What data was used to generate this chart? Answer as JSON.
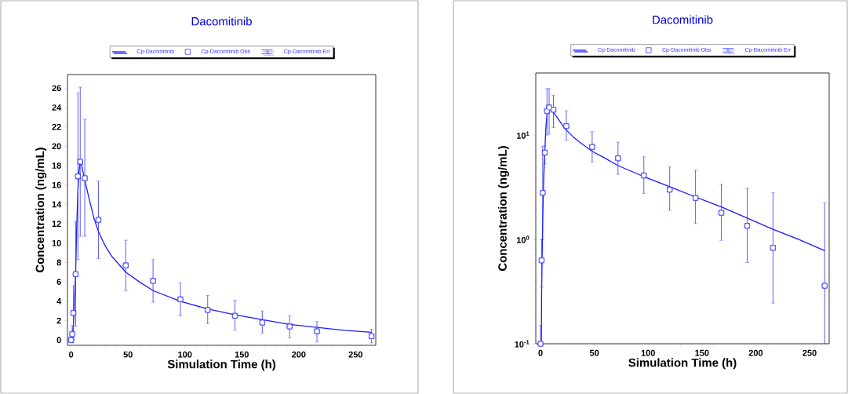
{
  "chart_data": [
    {
      "type": "line",
      "title": "Dacomitinib",
      "xlabel": "Simulation Time (h)",
      "ylabel": "Concentration (ng/mL)",
      "xlim": [
        -3.2,
        267.7
      ],
      "ylim": [
        -0.55,
        27.4
      ],
      "xticks": [
        0,
        50,
        100,
        150,
        200,
        250
      ],
      "yticks": [
        0,
        2,
        4,
        6,
        8,
        10,
        12,
        14,
        16,
        18,
        20,
        22,
        24,
        26
      ],
      "legend": "top",
      "grid": false,
      "series": [
        {
          "name": "Cp-Dacomitinib",
          "color": "#1a1aff",
          "marker": "none",
          "line_style": "solid",
          "x": [
            0,
            1,
            2,
            3,
            4,
            5,
            6,
            7,
            8,
            9,
            10,
            12,
            16,
            20,
            24,
            30,
            36,
            48,
            60,
            72,
            96,
            120,
            144,
            168,
            192,
            216,
            240,
            264
          ],
          "values": [
            0,
            0.3,
            1.5,
            4,
            7,
            12,
            15.5,
            17.5,
            18.3,
            18.2,
            17.6,
            16.5,
            14.5,
            12.6,
            11.2,
            9.7,
            8.6,
            7.0,
            6.0,
            5.1,
            4.0,
            3.2,
            2.6,
            2.1,
            1.6,
            1.3,
            1.0,
            0.8
          ]
        },
        {
          "name": "Cp-Dacomitinib Obs",
          "type": "scatter",
          "color": "#3333ff",
          "marker": "square",
          "x": [
            0,
            1,
            2,
            4,
            6,
            8,
            12,
            24,
            48,
            72,
            96,
            120,
            144,
            168,
            192,
            216,
            264
          ],
          "values": [
            0,
            0.6,
            2.8,
            6.8,
            16.9,
            18.4,
            16.7,
            12.4,
            7.7,
            6.1,
            4.2,
            3.1,
            2.5,
            1.8,
            1.4,
            0.9,
            0.4
          ]
        },
        {
          "name": "Cp-Dacomitinib Err",
          "type": "scatter",
          "color": "#3333ff",
          "marker": "none",
          "x": [
            0,
            1,
            2,
            4,
            6,
            8,
            12,
            24,
            48,
            72,
            96,
            120,
            144,
            168,
            192,
            216,
            264
          ],
          "values": [
            0,
            0.6,
            2.8,
            6.8,
            16.9,
            18.4,
            16.7,
            12.4,
            7.7,
            6.1,
            4.2,
            3.1,
            2.5,
            1.8,
            1.4,
            0.9,
            0.4
          ],
          "errors": [
            [
              0,
              0.3
            ],
            [
              -0.3,
              1.5
            ],
            [
              0,
              5.6
            ],
            [
              1.4,
              12.2
            ],
            [
              8.3,
              25.5
            ],
            [
              10.7,
              26.1
            ],
            [
              10.7,
              22.8
            ],
            [
              8.4,
              16.4
            ],
            [
              5.1,
              10.3
            ],
            [
              3.9,
              8.3
            ],
            [
              2.5,
              5.9
            ],
            [
              1.7,
              4.6
            ],
            [
              1.0,
              4.1
            ],
            [
              0.7,
              3.0
            ],
            [
              0.2,
              2.5
            ],
            [
              -0.2,
              1.9
            ],
            [
              -0.3,
              1.1
            ]
          ]
        }
      ]
    },
    {
      "type": "line",
      "title": "Dacomitinib",
      "xlabel": "Simulation Time (h)",
      "ylabel": "Concentration (ng/mL)",
      "log": "y",
      "xlim": [
        -4.4,
        268.2
      ],
      "ylim": [
        0.1,
        39.4
      ],
      "xticks": [
        0,
        50,
        100,
        150,
        200,
        250
      ],
      "yticks": [
        {
          "value": 0.1,
          "label": "10$^{-1}$"
        },
        {
          "value": 1,
          "label": "10$^{0}$"
        },
        {
          "value": 10,
          "label": "10$^{1}$"
        }
      ],
      "legend": "top",
      "grid": false,
      "series": [
        {
          "name": "Cp-Dacomitinib",
          "color": "#1a1aff",
          "marker": "none",
          "line_style": "solid",
          "x": [
            0.8,
            1,
            2,
            3,
            4,
            5,
            6,
            7,
            8,
            9,
            10,
            12,
            16,
            20,
            24,
            30,
            36,
            48,
            60,
            72,
            96,
            120,
            144,
            168,
            192,
            216,
            240,
            264
          ],
          "values": [
            0.1,
            0.3,
            1.5,
            4,
            7,
            12,
            15.5,
            17.5,
            18.3,
            18.2,
            17.6,
            16.5,
            14.5,
            12.6,
            11.2,
            9.7,
            8.6,
            7.0,
            6.0,
            5.1,
            4.0,
            3.2,
            2.55,
            2.05,
            1.6,
            1.25,
            1.0,
            0.78
          ]
        },
        {
          "name": "Cp-Dacomitinib Obs",
          "type": "scatter",
          "color": "#3333ff",
          "marker": "square",
          "x": [
            0,
            1,
            2,
            4,
            6,
            8,
            12,
            24,
            48,
            72,
            96,
            120,
            144,
            168,
            192,
            216,
            264
          ],
          "values": [
            0.1,
            0.63,
            2.8,
            6.8,
            17,
            18.4,
            17.5,
            12.2,
            7.7,
            6.0,
            4.1,
            3.0,
            2.5,
            1.8,
            1.35,
            0.83,
            0.36
          ]
        },
        {
          "name": "Cp-Dacomitinib Err",
          "type": "scatter",
          "color": "#3333ff",
          "marker": "none",
          "x": [
            0,
            1,
            2,
            4,
            6,
            8,
            12,
            24,
            48,
            72,
            96,
            120,
            144,
            168,
            192,
            216,
            264
          ],
          "values": [
            0.1,
            0.63,
            2.8,
            6.8,
            17,
            18.4,
            17.5,
            12.2,
            7.7,
            6.0,
            4.1,
            3.0,
            2.5,
            1.8,
            1.35,
            0.83,
            0.36
          ],
          "errors": [
            [
              0.1,
              0.15
            ],
            [
              0.35,
              1.0
            ],
            [
              1.0,
              7.8
            ],
            [
              5.3,
              7.9
            ],
            [
              10.0,
              27.9
            ],
            [
              10.2,
              27.9
            ],
            [
              11.8,
              24.1
            ],
            [
              8.9,
              17.1
            ],
            [
              5.5,
              10.8
            ],
            [
              4.2,
              8.55
            ],
            [
              2.75,
              6.2
            ],
            [
              1.9,
              4.95
            ],
            [
              1.42,
              4.6
            ],
            [
              0.98,
              3.37
            ],
            [
              0.6,
              3.09
            ],
            [
              0.245,
              2.8
            ],
            [
              0.1,
              2.24
            ]
          ]
        }
      ]
    }
  ]
}
